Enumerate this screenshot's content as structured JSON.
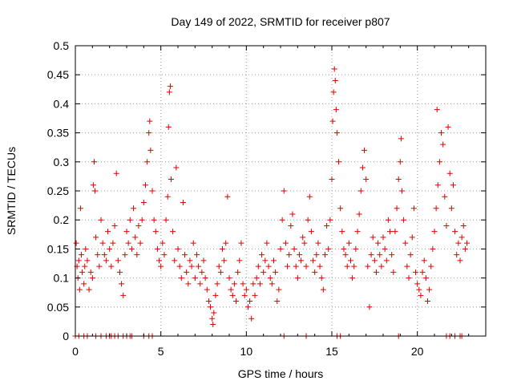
{
  "chart_data": {
    "type": "scatter",
    "title": "Day 149 of 2022, SRMTID for receiver p807",
    "xlabel": "GPS time / hours",
    "ylabel": "SRMTID / TECUs",
    "xlim": [
      0,
      24
    ],
    "ylim": [
      0,
      0.5
    ],
    "xticks": [
      0,
      5,
      10,
      15,
      20
    ],
    "xtick_labels": [
      "0",
      "5",
      "10",
      "15",
      "20"
    ],
    "yticks": [
      0,
      0.05,
      0.1,
      0.15,
      0.2,
      0.25,
      0.3,
      0.35,
      0.4,
      0.45,
      0.5
    ],
    "ytick_labels": [
      "0",
      "0.05",
      "0.1",
      "0.15",
      "0.2",
      "0.25",
      "0.3",
      "0.35",
      "0.4",
      "0.45",
      "0.5"
    ],
    "grid": true,
    "marker": "+",
    "color": "#e00000",
    "series": [
      {
        "name": "SRMTID",
        "points": [
          [
            0.05,
            0.16
          ],
          [
            0.1,
            0.12
          ],
          [
            0.15,
            0.1
          ],
          [
            0.2,
            0.13
          ],
          [
            0.25,
            0.08
          ],
          [
            0.3,
            0.22
          ],
          [
            0.35,
            0.14
          ],
          [
            0.4,
            0.11
          ],
          [
            0.5,
            0.09
          ],
          [
            0.55,
            0.12
          ],
          [
            0.6,
            0.15
          ],
          [
            0.7,
            0.13
          ],
          [
            0.8,
            0.08
          ],
          [
            0.9,
            0.11
          ],
          [
            1.0,
            0.1
          ],
          [
            1.05,
            0.26
          ],
          [
            1.1,
            0.3
          ],
          [
            1.15,
            0.25
          ],
          [
            1.2,
            0.17
          ],
          [
            1.3,
            0.14
          ],
          [
            1.4,
            0.12
          ],
          [
            1.5,
            0.2
          ],
          [
            1.6,
            0.16
          ],
          [
            1.7,
            0.14
          ],
          [
            1.8,
            0.13
          ],
          [
            1.9,
            0.18
          ],
          [
            2.0,
            0.15
          ],
          [
            2.1,
            0.12
          ],
          [
            2.2,
            0.16
          ],
          [
            2.3,
            0.19
          ],
          [
            2.4,
            0.28
          ],
          [
            2.5,
            0.13
          ],
          [
            2.6,
            0.11
          ],
          [
            2.7,
            0.09
          ],
          [
            2.8,
            0.07
          ],
          [
            2.9,
            0.14
          ],
          [
            3.0,
            0.18
          ],
          [
            3.1,
            0.16
          ],
          [
            3.2,
            0.2
          ],
          [
            3.3,
            0.15
          ],
          [
            3.4,
            0.22
          ],
          [
            3.5,
            0.17
          ],
          [
            3.6,
            0.14
          ],
          [
            3.7,
            0.19
          ],
          [
            3.8,
            0.16
          ],
          [
            3.9,
            0.2
          ],
          [
            4.0,
            0.23
          ],
          [
            4.1,
            0.26
          ],
          [
            4.2,
            0.3
          ],
          [
            4.3,
            0.35
          ],
          [
            4.35,
            0.37
          ],
          [
            4.4,
            0.32
          ],
          [
            4.5,
            0.25
          ],
          [
            4.6,
            0.2
          ],
          [
            4.7,
            0.18
          ],
          [
            4.8,
            0.15
          ],
          [
            4.9,
            0.13
          ],
          [
            5.0,
            0.12
          ],
          [
            5.1,
            0.16
          ],
          [
            5.2,
            0.14
          ],
          [
            5.3,
            0.2
          ],
          [
            5.4,
            0.24
          ],
          [
            5.45,
            0.36
          ],
          [
            5.5,
            0.42
          ],
          [
            5.55,
            0.43
          ],
          [
            5.6,
            0.27
          ],
          [
            5.7,
            0.18
          ],
          [
            5.8,
            0.13
          ],
          [
            5.9,
            0.29
          ],
          [
            6.0,
            0.15
          ],
          [
            6.1,
            0.12
          ],
          [
            6.2,
            0.1
          ],
          [
            6.3,
            0.23
          ],
          [
            6.4,
            0.14
          ],
          [
            6.5,
            0.11
          ],
          [
            6.6,
            0.09
          ],
          [
            6.7,
            0.13
          ],
          [
            6.8,
            0.12
          ],
          [
            6.9,
            0.16
          ],
          [
            7.0,
            0.1
          ],
          [
            7.1,
            0.14
          ],
          [
            7.2,
            0.12
          ],
          [
            7.3,
            0.09
          ],
          [
            7.4,
            0.11
          ],
          [
            7.5,
            0.13
          ],
          [
            7.6,
            0.1
          ],
          [
            7.7,
            0.08
          ],
          [
            7.8,
            0.06
          ],
          [
            7.9,
            0.05
          ],
          [
            8.0,
            0.03
          ],
          [
            8.05,
            0.02
          ],
          [
            8.1,
            0.04
          ],
          [
            8.2,
            0.07
          ],
          [
            8.3,
            0.09
          ],
          [
            8.4,
            0.12
          ],
          [
            8.5,
            0.11
          ],
          [
            8.6,
            0.15
          ],
          [
            8.7,
            0.13
          ],
          [
            8.8,
            0.16
          ],
          [
            8.9,
            0.24
          ],
          [
            9.0,
            0.1
          ],
          [
            9.1,
            0.08
          ],
          [
            9.2,
            0.07
          ],
          [
            9.3,
            0.09
          ],
          [
            9.4,
            0.06
          ],
          [
            9.5,
            0.11
          ],
          [
            9.6,
            0.13
          ],
          [
            9.7,
            0.16
          ],
          [
            9.8,
            0.09
          ],
          [
            9.9,
            0.07
          ],
          [
            10.0,
            0.08
          ],
          [
            10.1,
            0.05
          ],
          [
            10.2,
            0.06
          ],
          [
            10.3,
            0.03
          ],
          [
            10.4,
            0.09
          ],
          [
            10.5,
            0.07
          ],
          [
            10.6,
            0.1
          ],
          [
            10.7,
            0.12
          ],
          [
            10.8,
            0.09
          ],
          [
            10.9,
            0.14
          ],
          [
            11.0,
            0.11
          ],
          [
            11.1,
            0.13
          ],
          [
            11.2,
            0.16
          ],
          [
            11.3,
            0.12
          ],
          [
            11.4,
            0.1
          ],
          [
            11.5,
            0.09
          ],
          [
            11.6,
            0.13
          ],
          [
            11.7,
            0.11
          ],
          [
            11.8,
            0.06
          ],
          [
            11.9,
            0.08
          ],
          [
            12.0,
            0.15
          ],
          [
            12.1,
            0.2
          ],
          [
            12.2,
            0.25
          ],
          [
            12.3,
            0.16
          ],
          [
            12.4,
            0.12
          ],
          [
            12.5,
            0.14
          ],
          [
            12.6,
            0.19
          ],
          [
            12.7,
            0.21
          ],
          [
            12.8,
            0.15
          ],
          [
            12.9,
            0.12
          ],
          [
            13.0,
            0.1
          ],
          [
            13.1,
            0.14
          ],
          [
            13.2,
            0.13
          ],
          [
            13.3,
            0.17
          ],
          [
            13.4,
            0.16
          ],
          [
            13.5,
            0.12
          ],
          [
            13.6,
            0.2
          ],
          [
            13.7,
            0.24
          ],
          [
            13.8,
            0.18
          ],
          [
            13.9,
            0.13
          ],
          [
            14.0,
            0.11
          ],
          [
            14.1,
            0.14
          ],
          [
            14.2,
            0.16
          ],
          [
            14.3,
            0.12
          ],
          [
            14.4,
            0.1
          ],
          [
            14.5,
            0.08
          ],
          [
            14.6,
            0.14
          ],
          [
            14.7,
            0.19
          ],
          [
            14.8,
            0.15
          ],
          [
            14.9,
            0.2
          ],
          [
            15.0,
            0.27
          ],
          [
            15.05,
            0.37
          ],
          [
            15.1,
            0.42
          ],
          [
            15.15,
            0.46
          ],
          [
            15.2,
            0.44
          ],
          [
            15.25,
            0.39
          ],
          [
            15.3,
            0.35
          ],
          [
            15.4,
            0.3
          ],
          [
            15.5,
            0.22
          ],
          [
            15.6,
            0.18
          ],
          [
            15.7,
            0.15
          ],
          [
            15.8,
            0.14
          ],
          [
            15.9,
            0.12
          ],
          [
            16.0,
            0.16
          ],
          [
            16.1,
            0.13
          ],
          [
            16.2,
            0.1
          ],
          [
            16.3,
            0.12
          ],
          [
            16.4,
            0.15
          ],
          [
            16.5,
            0.18
          ],
          [
            16.6,
            0.21
          ],
          [
            16.7,
            0.25
          ],
          [
            16.8,
            0.29
          ],
          [
            16.9,
            0.32
          ],
          [
            17.0,
            0.27
          ],
          [
            17.1,
            0.12
          ],
          [
            17.2,
            0.05
          ],
          [
            17.3,
            0.14
          ],
          [
            17.4,
            0.17
          ],
          [
            17.5,
            0.13
          ],
          [
            17.6,
            0.11
          ],
          [
            17.7,
            0.16
          ],
          [
            17.8,
            0.14
          ],
          [
            17.9,
            0.12
          ],
          [
            18.0,
            0.17
          ],
          [
            18.1,
            0.15
          ],
          [
            18.2,
            0.13
          ],
          [
            18.3,
            0.2
          ],
          [
            18.4,
            0.18
          ],
          [
            18.5,
            0.14
          ],
          [
            18.6,
            0.11
          ],
          [
            18.7,
            0.18
          ],
          [
            18.8,
            0.22
          ],
          [
            18.9,
            0.27
          ],
          [
            19.0,
            0.3
          ],
          [
            19.05,
            0.34
          ],
          [
            19.1,
            0.25
          ],
          [
            19.2,
            0.2
          ],
          [
            19.3,
            0.16
          ],
          [
            19.4,
            0.12
          ],
          [
            19.5,
            0.1
          ],
          [
            19.6,
            0.14
          ],
          [
            19.7,
            0.17
          ],
          [
            19.8,
            0.22
          ],
          [
            19.9,
            0.11
          ],
          [
            20.0,
            0.09
          ],
          [
            20.1,
            0.08
          ],
          [
            20.2,
            0.07
          ],
          [
            20.3,
            0.11
          ],
          [
            20.4,
            0.13
          ],
          [
            20.5,
            0.1
          ],
          [
            20.6,
            0.06
          ],
          [
            20.7,
            0.08
          ],
          [
            20.8,
            0.12
          ],
          [
            20.9,
            0.15
          ],
          [
            21.0,
            0.18
          ],
          [
            21.1,
            0.22
          ],
          [
            21.15,
            0.39
          ],
          [
            21.2,
            0.26
          ],
          [
            21.3,
            0.3
          ],
          [
            21.4,
            0.35
          ],
          [
            21.5,
            0.33
          ],
          [
            21.6,
            0.24
          ],
          [
            21.7,
            0.19
          ],
          [
            21.8,
            0.36
          ],
          [
            21.9,
            0.28
          ],
          [
            22.0,
            0.22
          ],
          [
            22.1,
            0.26
          ],
          [
            22.2,
            0.18
          ],
          [
            22.3,
            0.14
          ],
          [
            22.4,
            0.16
          ],
          [
            22.5,
            0.13
          ],
          [
            22.6,
            0.17
          ],
          [
            22.7,
            0.19
          ],
          [
            22.8,
            0.15
          ],
          [
            22.9,
            0.16
          ],
          [
            0.0,
            0.0
          ],
          [
            0.2,
            0.0
          ],
          [
            0.5,
            0.0
          ],
          [
            0.7,
            0.0
          ],
          [
            1.2,
            0.0
          ],
          [
            1.5,
            0.0
          ],
          [
            1.8,
            0.0
          ],
          [
            2.0,
            0.0
          ],
          [
            2.1,
            0.0
          ],
          [
            2.3,
            0.0
          ],
          [
            2.5,
            0.0
          ],
          [
            2.8,
            0.0
          ],
          [
            3.0,
            0.0
          ],
          [
            3.2,
            0.0
          ],
          [
            3.3,
            0.0
          ],
          [
            4.0,
            0.0
          ],
          [
            4.3,
            0.0
          ],
          [
            4.5,
            0.0
          ],
          [
            12.2,
            0.0
          ],
          [
            13.5,
            0.0
          ],
          [
            15.3,
            0.0
          ],
          [
            15.5,
            0.0
          ],
          [
            18.9,
            0.0
          ],
          [
            21.7,
            0.0
          ],
          [
            21.9,
            0.0
          ],
          [
            22.2,
            0.0
          ],
          [
            22.5,
            0.0
          ],
          [
            22.6,
            0.0
          ]
        ]
      }
    ]
  }
}
